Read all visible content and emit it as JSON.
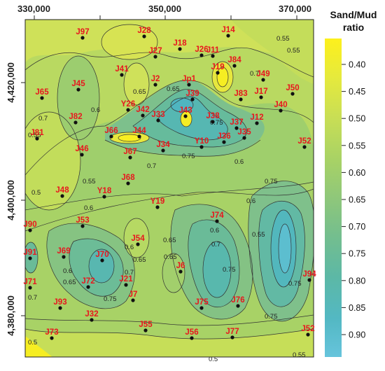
{
  "legend": {
    "title_line1": "Sand/Mud",
    "title_line2": "ratio",
    "ticks": [
      "0.40",
      "0.45",
      "0.50",
      "0.55",
      "0.60",
      "0.65",
      "0.70",
      "0.75",
      "0.80",
      "0.85",
      "0.90"
    ],
    "colors": [
      "#fdf01c",
      "#dde84a",
      "#c3dc58",
      "#a8d265",
      "#94ca75",
      "#7fc285",
      "#6abb97",
      "#5ab7a9",
      "#50b6bc",
      "#54bacd",
      "#62c1d9"
    ]
  },
  "x_axis_labels": [
    "330,000",
    "350,000",
    "370,000"
  ],
  "y_axis_labels": [
    "4,420,000",
    "4,400,000",
    "4,380,000"
  ],
  "contour_labels": [
    "0.55",
    "0.65",
    "0.7",
    "0.6",
    "0.65",
    "0.75",
    "0.6",
    "0.55",
    "0.7",
    "0.6",
    "0.75",
    "0.7",
    "0.5",
    "0.55",
    "0.6",
    "0.55",
    "0.6",
    "0.65",
    "0.6",
    "0.65",
    "0.7",
    "0.7",
    "0.75",
    "0.75",
    "0.75",
    "0.65",
    "0.75",
    "0.5",
    "0.55",
    "0.7",
    "0.5",
    "0.55",
    "0.75",
    "0.6",
    "0.65"
  ],
  "wells": [
    {
      "name": "J97"
    },
    {
      "name": "J28"
    },
    {
      "name": "J18"
    },
    {
      "name": "J14"
    },
    {
      "name": "J27"
    },
    {
      "name": "J26"
    },
    {
      "name": "J11"
    },
    {
      "name": "J84"
    },
    {
      "name": "J41"
    },
    {
      "name": "J19"
    },
    {
      "name": "J49"
    },
    {
      "name": "J45"
    },
    {
      "name": "J2"
    },
    {
      "name": "Jp1"
    },
    {
      "name": "J65"
    },
    {
      "name": "J50"
    },
    {
      "name": "J39"
    },
    {
      "name": "J83"
    },
    {
      "name": "J17"
    },
    {
      "name": "Y26"
    },
    {
      "name": "J40"
    },
    {
      "name": "J42"
    },
    {
      "name": "J43"
    },
    {
      "name": "J33"
    },
    {
      "name": "J82"
    },
    {
      "name": "J38"
    },
    {
      "name": "J12"
    },
    {
      "name": "J37"
    },
    {
      "name": "J66"
    },
    {
      "name": "J44"
    },
    {
      "name": "J81"
    },
    {
      "name": "J35"
    },
    {
      "name": "J36"
    },
    {
      "name": "Y10"
    },
    {
      "name": "J34"
    },
    {
      "name": "J52"
    },
    {
      "name": "J46"
    },
    {
      "name": "J67"
    },
    {
      "name": "J68"
    },
    {
      "name": "J48"
    },
    {
      "name": "Y18"
    },
    {
      "name": "Y19"
    },
    {
      "name": "J74"
    },
    {
      "name": "J90"
    },
    {
      "name": "J53"
    },
    {
      "name": "J54"
    },
    {
      "name": "J91"
    },
    {
      "name": "J69"
    },
    {
      "name": "J70"
    },
    {
      "name": "J6"
    },
    {
      "name": "J94"
    },
    {
      "name": "J71"
    },
    {
      "name": "J72"
    },
    {
      "name": "J21"
    },
    {
      "name": "J7"
    },
    {
      "name": "J93"
    },
    {
      "name": "J75"
    },
    {
      "name": "J76"
    },
    {
      "name": "J32"
    },
    {
      "name": "J55"
    },
    {
      "name": "J73"
    },
    {
      "name": "J56"
    },
    {
      "name": "J77"
    },
    {
      "name": "J52"
    }
  ]
}
